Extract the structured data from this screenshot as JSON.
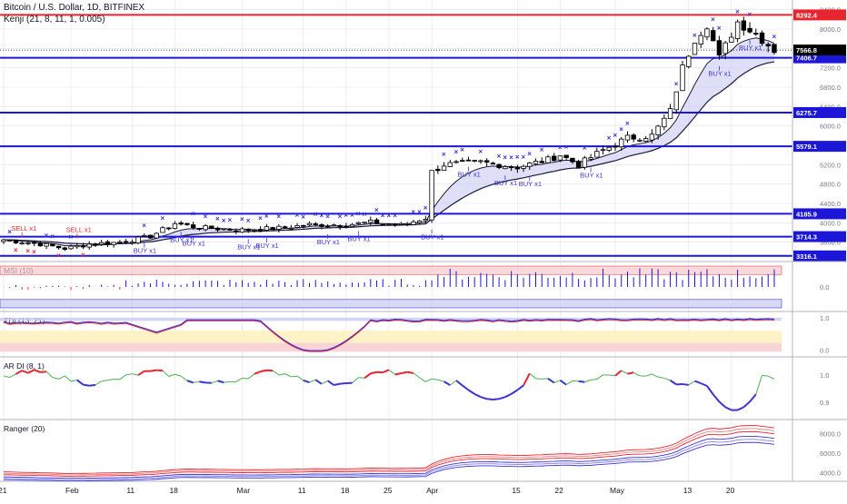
{
  "header": {
    "title": "Bitcoin / U.S. Dollar, 1D, BITFINEX",
    "indicator": "Kenji (21, 8, 11, 1, 0.005)"
  },
  "colors": {
    "up": "#ffffff",
    "down": "#000000",
    "level_red": "#e8242e",
    "level_blue": "#1c17d8",
    "signal_x": "#3b2fd6",
    "signal_sell": "#e8242e",
    "band_fill": "#c9c9f2",
    "grid": "#e1e3eb"
  },
  "chart_data": [
    {
      "type": "candlestick",
      "name": "price",
      "ylim": [
        3200,
        8600
      ],
      "y_ticks": [
        3600,
        4000,
        4400,
        4800,
        5200,
        5600,
        6000,
        6400,
        6800,
        7200,
        7600,
        8000,
        8400
      ],
      "y_tick_labels": [
        "3600.0",
        "4000.0",
        "4400.0",
        "4800.0",
        "5200.0",
        "5600.0",
        "6000.0",
        "6400.0",
        "6800.0",
        "7200.0",
        "7600.0",
        "8000.0",
        "8400.0"
      ],
      "x_tick_labels": [
        "21",
        "Feb",
        "11",
        "18",
        "Mar",
        "11",
        "18",
        "25",
        "Apr",
        "15",
        "22",
        "May",
        "13",
        "20"
      ],
      "x_tick_days": [
        0,
        11,
        21,
        28,
        39,
        49,
        56,
        63,
        70,
        84,
        91,
        100,
        112,
        119
      ],
      "levels": [
        {
          "value": 8292.4,
          "label": "8292.4",
          "color": "red"
        },
        {
          "value": 7406.7,
          "label": "7406.7",
          "color": "blue"
        },
        {
          "value": 6275.7,
          "label": "6275.7",
          "color": "blue"
        },
        {
          "value": 5579.1,
          "label": "5579.1",
          "color": "blue"
        },
        {
          "value": 4185.9,
          "label": "4185.9",
          "color": "blue"
        },
        {
          "value": 3714.3,
          "label": "3714.3",
          "color": "blue"
        },
        {
          "value": 3316.1,
          "label": "3316.1",
          "color": "blue"
        }
      ],
      "last_price": {
        "value": 7566.8,
        "label": "7566.8"
      },
      "anchors": [
        [
          0,
          3650
        ],
        [
          6,
          3560
        ],
        [
          10,
          3470
        ],
        [
          14,
          3560
        ],
        [
          18,
          3590
        ],
        [
          21,
          3640
        ],
        [
          24,
          3720
        ],
        [
          28,
          3990
        ],
        [
          32,
          3900
        ],
        [
          39,
          3850
        ],
        [
          45,
          3890
        ],
        [
          50,
          3960
        ],
        [
          56,
          3960
        ],
        [
          60,
          4010
        ],
        [
          65,
          3950
        ],
        [
          69,
          4100
        ],
        [
          70,
          5050
        ],
        [
          72,
          5200
        ],
        [
          78,
          5250
        ],
        [
          84,
          5150
        ],
        [
          89,
          5300
        ],
        [
          91,
          5400
        ],
        [
          94,
          5200
        ],
        [
          98,
          5500
        ],
        [
          102,
          5750
        ],
        [
          106,
          5800
        ],
        [
          109,
          6300
        ],
        [
          111,
          7200
        ],
        [
          113,
          7800
        ],
        [
          115,
          8100
        ],
        [
          117,
          7400
        ],
        [
          120,
          8150
        ],
        [
          123,
          7900
        ],
        [
          126,
          7566.8
        ]
      ],
      "buy_signals": [
        [
          3,
          "SELL x1",
          "sell"
        ],
        [
          12,
          "SELL x1",
          "sell"
        ],
        [
          23,
          "BUY x1",
          "buy"
        ],
        [
          29,
          "BUY x1",
          "buy"
        ],
        [
          31,
          "BUY x1",
          "buy"
        ],
        [
          40,
          "BUY x1",
          "buy"
        ],
        [
          43,
          "BUY x1",
          "buy"
        ],
        [
          53,
          "BUY x1",
          "buy"
        ],
        [
          58,
          "BUY x1",
          "buy"
        ],
        [
          70,
          "BUY x1",
          "buy"
        ],
        [
          76,
          "BUY x1",
          "buy"
        ],
        [
          82,
          "BUY x1",
          "buy"
        ],
        [
          86,
          "BUY x1",
          "buy"
        ],
        [
          96,
          "BUY x1",
          "buy"
        ],
        [
          117,
          "BUY x1",
          "buy"
        ],
        [
          122,
          "BUY x1",
          "buy"
        ]
      ]
    },
    {
      "type": "line",
      "name": "MSI (10)",
      "ylim": [
        -1,
        1
      ],
      "y_ticks": [
        0
      ],
      "y_tick_labels": [
        "0.0"
      ]
    },
    {
      "type": "line",
      "name": "TDI (13, 21)",
      "ylim": [
        -0.1,
        1.05
      ],
      "y_ticks": [
        0,
        1
      ],
      "y_tick_labels": [
        "0.0",
        "1.0"
      ]
    },
    {
      "type": "line",
      "name": "AR DI (8, 1)",
      "ylim": [
        0.85,
        1.05
      ],
      "y_ticks": [
        0.9,
        1
      ],
      "y_tick_labels": [
        "0.9",
        "1.0"
      ]
    },
    {
      "type": "line",
      "name": "Ranger (20)",
      "ylim": [
        3500,
        9000
      ],
      "y_ticks": [
        4000,
        6000,
        8000
      ],
      "y_tick_labels": [
        "4000.0",
        "6000.0",
        "8000.0"
      ]
    }
  ]
}
